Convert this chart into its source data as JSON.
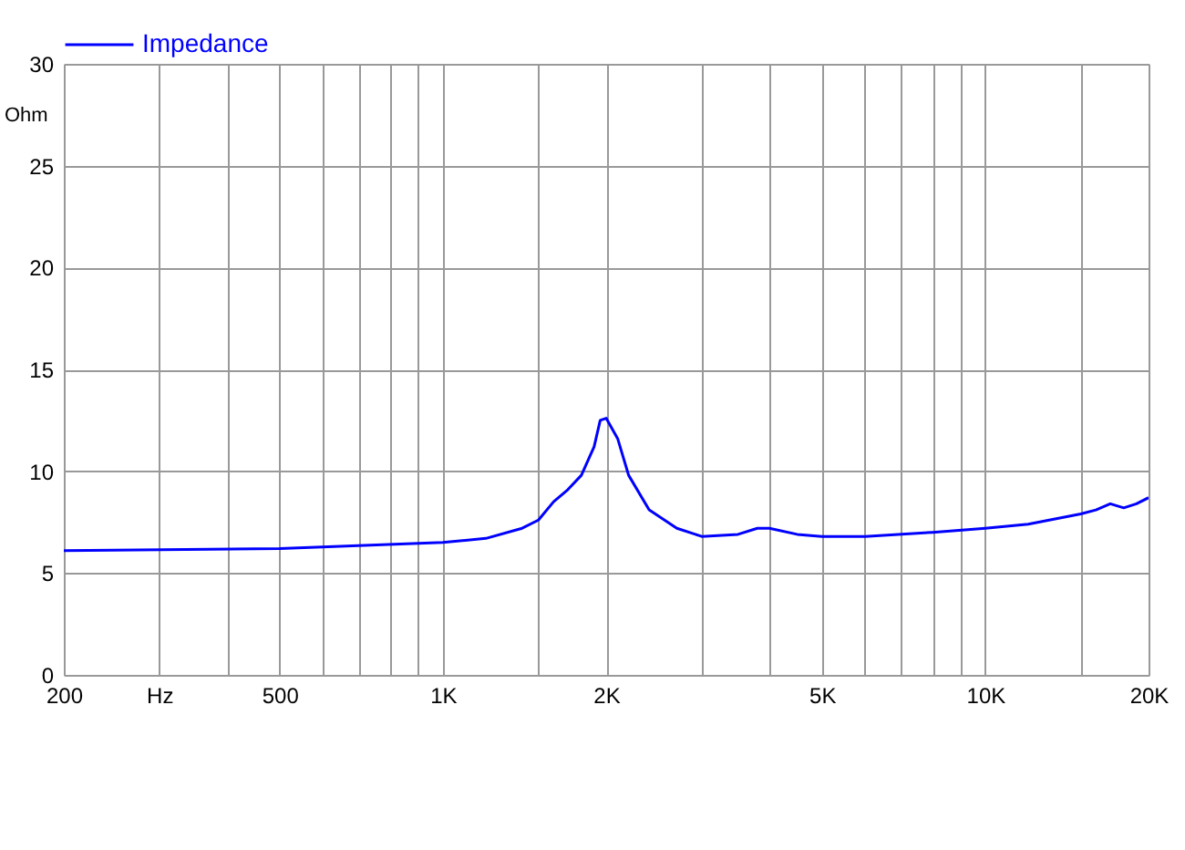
{
  "chart_data": {
    "type": "line",
    "ylabel": "Ohm",
    "log": "x",
    "xlim": [
      200,
      20000
    ],
    "ylim": [
      0,
      30
    ],
    "xticks": [
      200,
      {
        "value": 300,
        "label": "Hz"
      },
      {
        "value": 400,
        "label": null
      },
      500,
      {
        "value": 600,
        "label": null
      },
      {
        "value": 700,
        "label": null
      },
      {
        "value": 800,
        "label": null
      },
      {
        "value": 900,
        "label": null
      },
      {
        "value": 1000,
        "label": "1K"
      },
      {
        "value": 1500,
        "label": null
      },
      {
        "value": 2000,
        "label": "2K"
      },
      {
        "value": 3000,
        "label": null
      },
      {
        "value": 4000,
        "label": null
      },
      {
        "value": 5000,
        "label": "5K"
      },
      {
        "value": 6000,
        "label": null
      },
      {
        "value": 7000,
        "label": null
      },
      {
        "value": 8000,
        "label": null
      },
      {
        "value": 9000,
        "label": null
      },
      {
        "value": 10000,
        "label": "10K"
      },
      {
        "value": 15000,
        "label": null
      },
      {
        "value": 20000,
        "label": "20K"
      }
    ],
    "yticks": [
      0,
      5,
      10,
      15,
      20,
      25,
      30
    ],
    "grid": true,
    "legend": "top left",
    "marker": "none",
    "line_style": "solid",
    "x": [
      200,
      500,
      1000,
      1200,
      1400,
      1500,
      1600,
      1700,
      1800,
      1900,
      1950,
      2000,
      2100,
      2200,
      2400,
      2700,
      3000,
      3500,
      3800,
      4000,
      4500,
      5000,
      6000,
      8000,
      10000,
      12000,
      15000,
      16000,
      17000,
      18000,
      19000,
      20000
    ],
    "series": [
      {
        "name": "Impedance",
        "color": "#0000ff",
        "values": [
          6.1,
          6.2,
          6.5,
          6.7,
          7.2,
          7.6,
          8.5,
          9.1,
          9.8,
          11.2,
          12.5,
          12.6,
          11.6,
          9.8,
          8.1,
          7.2,
          6.8,
          6.9,
          7.2,
          7.2,
          6.9,
          6.8,
          6.8,
          7.0,
          7.2,
          7.4,
          7.9,
          8.1,
          8.4,
          8.2,
          8.4,
          8.7
        ]
      }
    ]
  }
}
